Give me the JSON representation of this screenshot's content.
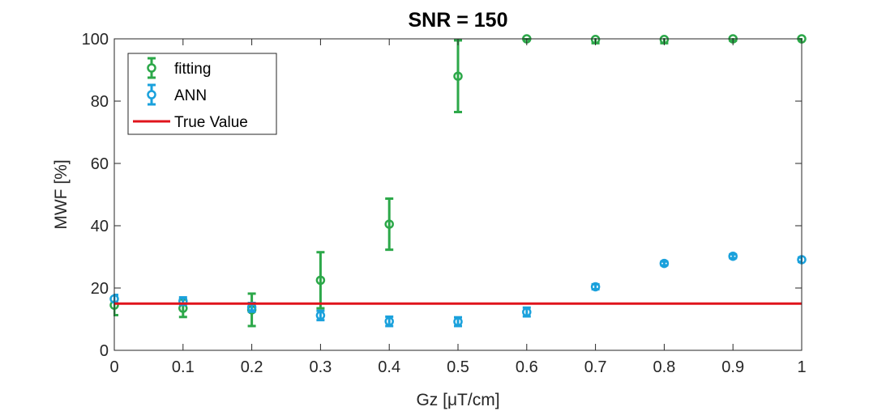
{
  "chart_data": {
    "type": "scatter",
    "title": "SNR = 150",
    "xlabel": "Gz [μT/cm]",
    "ylabel": "MWF [%]",
    "xlim": [
      0,
      1
    ],
    "ylim": [
      0,
      100
    ],
    "xticks": [
      0,
      0.1,
      0.2,
      0.3,
      0.4,
      0.5,
      0.6,
      0.7,
      0.8,
      0.9,
      1
    ],
    "xtick_labels": [
      "0",
      "0.1",
      "0.2",
      "0.3",
      "0.4",
      "0.5",
      "0.6",
      "0.7",
      "0.8",
      "0.9",
      "1"
    ],
    "yticks": [
      0,
      20,
      40,
      60,
      80,
      100
    ],
    "ytick_labels": [
      "0",
      "20",
      "40",
      "60",
      "80",
      "100"
    ],
    "grid": false,
    "legend_position": "top-left",
    "series": [
      {
        "name": "fitting",
        "color": "#2ca849",
        "marker": "circle",
        "errorbars": true,
        "x": [
          0,
          0.1,
          0.2,
          0.3,
          0.4,
          0.5,
          0.6,
          0.7,
          0.8,
          0.9,
          1
        ],
        "y": [
          14.5,
          13.5,
          13,
          22.5,
          40.5,
          88,
          100,
          99.8,
          99.8,
          100,
          100
        ],
        "err": [
          3.2,
          2.8,
          5.2,
          9,
          8.2,
          11.5,
          0.3,
          1.2,
          1.2,
          0.6,
          0.4
        ]
      },
      {
        "name": "ANN",
        "color": "#1aa1dc",
        "marker": "circle",
        "errorbars": true,
        "x": [
          0,
          0.1,
          0.2,
          0.3,
          0.4,
          0.5,
          0.6,
          0.7,
          0.8,
          0.9,
          1
        ],
        "y": [
          16.5,
          15.8,
          13.8,
          11.2,
          9.3,
          9.2,
          12.3,
          20.4,
          27.9,
          30.2,
          29.1
        ],
        "err": [
          1.3,
          1.2,
          1.4,
          1.5,
          1.5,
          1.4,
          1.4,
          0.8,
          0.6,
          0.6,
          0.7
        ]
      },
      {
        "name": "True Value",
        "color": "#e0141c",
        "type": "line",
        "x": [
          0,
          1
        ],
        "y": [
          15,
          15
        ]
      }
    ]
  }
}
